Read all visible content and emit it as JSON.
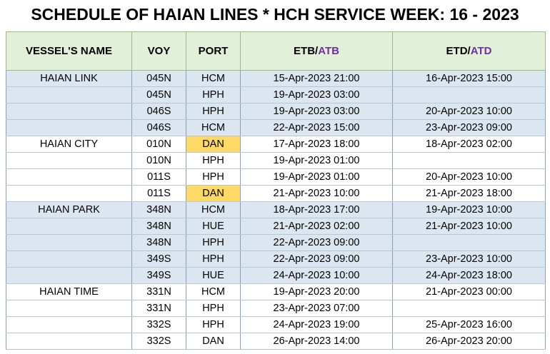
{
  "title": "SCHEDULE OF HAIAN LINES * HCH SERVICE WEEK: 16 - 2023",
  "headers": {
    "vessel": "VESSEL'S NAME",
    "voy": "VOY",
    "port": "PORT",
    "etb": "ETB/",
    "atb": "ATB",
    "etd": "ETD/",
    "atd": "ATD"
  },
  "rows": [
    {
      "vessel": "HAIAN LINK",
      "voy": "045N",
      "port": "HCM",
      "etb": "15-Apr-2023 21:00",
      "etd": "16-Apr-2023 15:00",
      "bg": "blue"
    },
    {
      "vessel": "",
      "voy": "045N",
      "port": "HPH",
      "etb": "19-Apr-2023 03:00",
      "etd": "",
      "bg": "blue"
    },
    {
      "vessel": "",
      "voy": "046S",
      "port": "HPH",
      "etb": "19-Apr-2023 03:00",
      "etd": "20-Apr-2023 10:00",
      "bg": "blue"
    },
    {
      "vessel": "",
      "voy": "046S",
      "port": "HCM",
      "etb": "22-Apr-2023 15:00",
      "etd": "23-Apr-2023 09:00",
      "bg": "blue"
    },
    {
      "vessel": "HAIAN CITY",
      "voy": "010N",
      "port": "DAN",
      "etb": "17-Apr-2023 18:00",
      "etd": "18-Apr-2023 02:00",
      "bg": "white",
      "hl": true
    },
    {
      "vessel": "",
      "voy": "010N",
      "port": "HPH",
      "etb": "19-Apr-2023 01:00",
      "etd": "",
      "bg": "white"
    },
    {
      "vessel": "",
      "voy": "011S",
      "port": "HPH",
      "etb": "19-Apr-2023 01:00",
      "etd": "20-Apr-2023 10:00",
      "bg": "white"
    },
    {
      "vessel": "",
      "voy": "011S",
      "port": "DAN",
      "etb": "21-Apr-2023 10:00",
      "etd": "21-Apr-2023 18:00",
      "bg": "white",
      "hl": true
    },
    {
      "vessel": "HAIAN PARK",
      "voy": "348N",
      "port": "HCM",
      "etb": "18-Apr-2023 17:00",
      "etd": "19-Apr-2023 10:00",
      "bg": "blue"
    },
    {
      "vessel": "",
      "voy": "348N",
      "port": "HUE",
      "etb": "21-Apr-2023 02:00",
      "etd": "21-Apr-2023 10:00",
      "bg": "blue"
    },
    {
      "vessel": "",
      "voy": "348N",
      "port": "HPH",
      "etb": "22-Apr-2023 09:00",
      "etd": "",
      "bg": "blue"
    },
    {
      "vessel": "",
      "voy": "349S",
      "port": "HPH",
      "etb": "22-Apr-2023 09:00",
      "etd": "23-Apr-2023 10:00",
      "bg": "blue"
    },
    {
      "vessel": "",
      "voy": "349S",
      "port": "HUE",
      "etb": "24-Apr-2023 10:00",
      "etd": "24-Apr-2023 18:00",
      "bg": "blue"
    },
    {
      "vessel": "HAIAN TIME",
      "voy": "331N",
      "port": "HCM",
      "etb": "19-Apr-2023 20:00",
      "etd": "21-Apr-2023 00:00",
      "bg": "white"
    },
    {
      "vessel": "",
      "voy": "331N",
      "port": "HPH",
      "etb": "23-Apr-2023 07:00",
      "etd": "",
      "bg": "white"
    },
    {
      "vessel": "",
      "voy": "332S",
      "port": "HPH",
      "etb": "24-Apr-2023 19:00",
      "etd": "25-Apr-2023 16:00",
      "bg": "white"
    },
    {
      "vessel": "",
      "voy": "332S",
      "port": "DAN",
      "etb": "26-Apr-2023 14:00",
      "etd": "26-Apr-2023 20:00",
      "bg": "white"
    }
  ],
  "colors": {
    "header_bg": "#e2efd9",
    "row_blue": "#dce6f1",
    "highlight": "#ffd966",
    "actual_text": "#7030a0"
  }
}
